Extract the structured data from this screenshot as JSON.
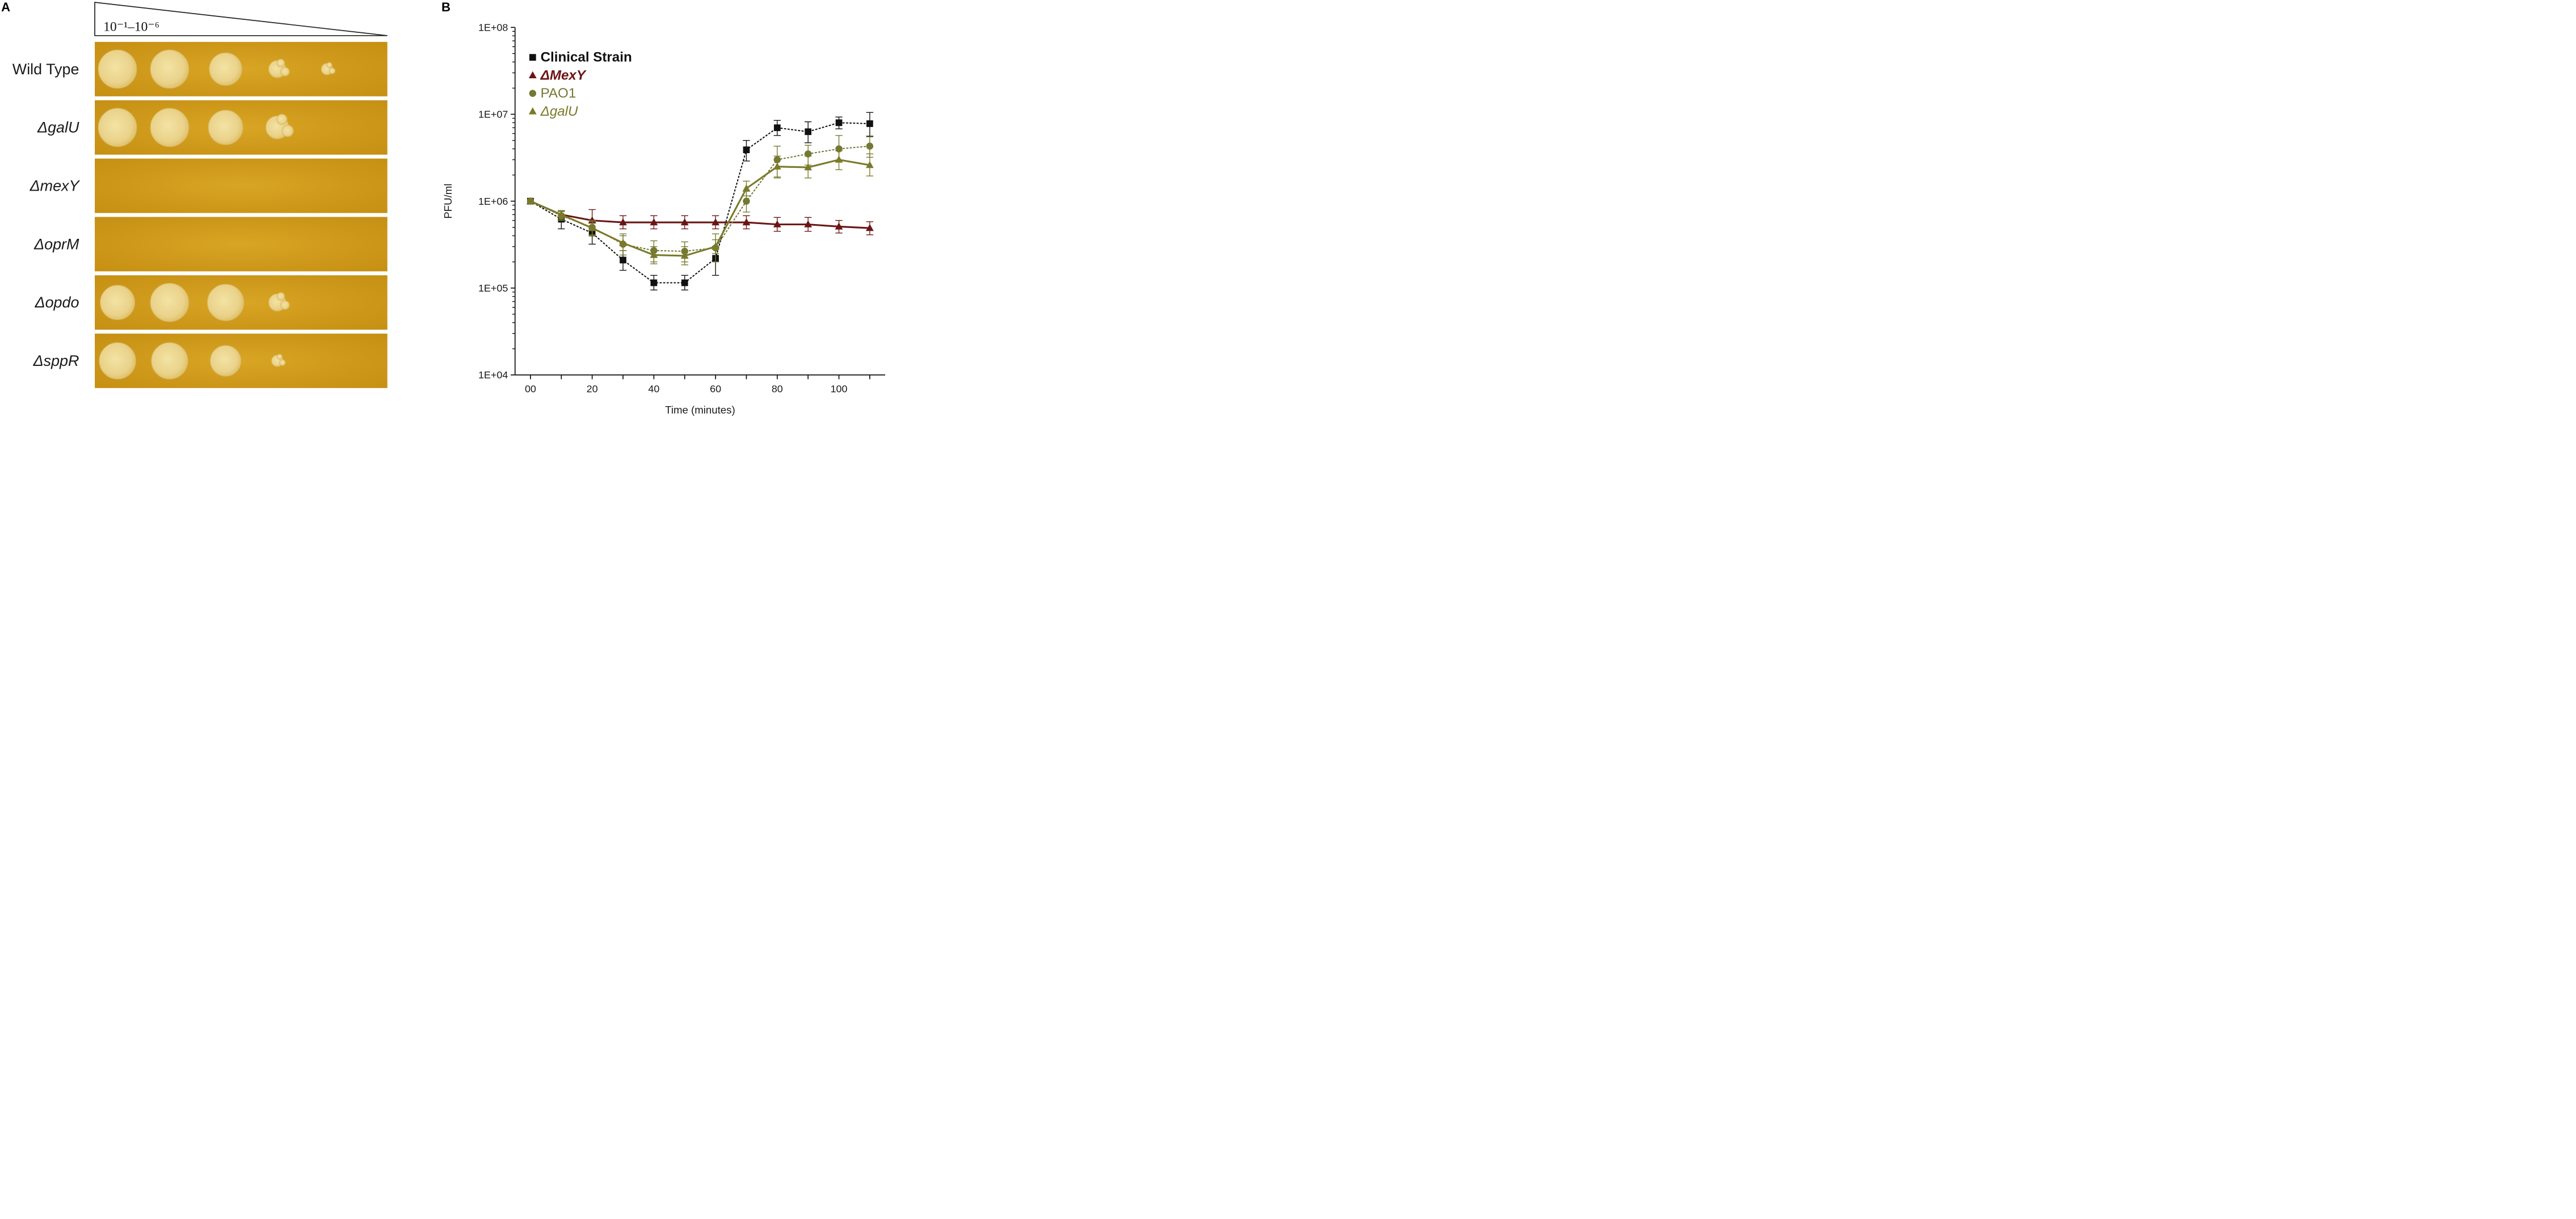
{
  "panel_a": {
    "label": "A",
    "dilution_label": "10⁻¹–10⁻⁶",
    "rows": [
      {
        "name": "Wild Type",
        "italic": false,
        "spots": [
          1.0,
          1.0,
          0.85,
          0.45,
          0.3,
          0
        ]
      },
      {
        "name": "ΔgalU",
        "italic": true,
        "spots": [
          1.0,
          1.0,
          0.9,
          0.6,
          0,
          0
        ]
      },
      {
        "name": "ΔmexY",
        "italic": true,
        "spots": [
          0,
          0,
          0,
          0,
          0,
          0
        ]
      },
      {
        "name": "ΔoprM",
        "italic": true,
        "spots": [
          0,
          0,
          0,
          0,
          0,
          0
        ]
      },
      {
        "name": "Δopdo",
        "italic": true,
        "spots": [
          0.9,
          1.0,
          0.95,
          0.45,
          0,
          0
        ]
      },
      {
        "name": "ΔsppR",
        "italic": true,
        "spots": [
          0.95,
          0.95,
          0.8,
          0.3,
          0,
          0
        ]
      }
    ]
  },
  "chart_data": {
    "label": "B",
    "type": "line",
    "xlabel": "Time (minutes)",
    "ylabel": "PFU/ml",
    "yscale": "log",
    "ylim": [
      10000,
      100000000
    ],
    "xlim": [
      -5,
      115
    ],
    "x_ticks": [
      0,
      20,
      40,
      60,
      80,
      100
    ],
    "x_tick_labels": [
      "00",
      "20",
      "40",
      "60",
      "80",
      "100"
    ],
    "y_ticks": [
      10000,
      100000,
      1000000,
      10000000,
      100000000
    ],
    "y_tick_labels": [
      "1E+04",
      "1E+05",
      "1E+06",
      "1E+07",
      "1E+08"
    ],
    "series": [
      {
        "name": "Clinical Strain",
        "color": "#111111",
        "marker": "square",
        "line": "dotted",
        "label_italic": false,
        "x": [
          0,
          10,
          20,
          30,
          40,
          50,
          60,
          70,
          80,
          90,
          100,
          110
        ],
        "values": [
          1000000,
          620000,
          430000,
          210000,
          115000,
          115000,
          220000,
          3900000,
          7000000,
          6300000,
          8000000,
          7800000
        ],
        "err_hi": [
          1000000,
          760000,
          560000,
          270000,
          140000,
          140000,
          300000,
          5000000,
          8500000,
          8200000,
          9300000,
          10500000
        ],
        "err_lo": [
          1000000,
          480000,
          320000,
          160000,
          95000,
          95000,
          140000,
          2900000,
          5700000,
          4700000,
          6800000,
          5600000
        ]
      },
      {
        "name": "ΔMexY",
        "color": "#6b1515",
        "marker": "triangle",
        "line": "solid",
        "label_italic": true,
        "x": [
          0,
          10,
          20,
          30,
          40,
          50,
          60,
          70,
          80,
          90,
          100,
          110
        ],
        "values": [
          1000000,
          700000,
          600000,
          570000,
          570000,
          570000,
          570000,
          570000,
          540000,
          540000,
          510000,
          490000
        ],
        "err_hi": [
          1000000,
          780000,
          800000,
          680000,
          680000,
          680000,
          680000,
          680000,
          650000,
          650000,
          600000,
          580000
        ],
        "err_lo": [
          1000000,
          620000,
          480000,
          480000,
          480000,
          480000,
          480000,
          480000,
          450000,
          450000,
          430000,
          410000
        ]
      },
      {
        "name": "PAO1",
        "color": "#757833",
        "marker": "circle",
        "line": "dotted",
        "label_italic": false,
        "x": [
          0,
          10,
          20,
          30,
          40,
          50,
          60,
          70,
          80,
          90,
          100,
          110
        ],
        "values": [
          1000000,
          680000,
          500000,
          320000,
          270000,
          265000,
          290000,
          1000000,
          3000000,
          3500000,
          4000000,
          4300000
        ],
        "err_hi": [
          1000000,
          760000,
          600000,
          420000,
          350000,
          340000,
          420000,
          1300000,
          4300000,
          4400000,
          5700000,
          5500000
        ],
        "err_lo": [
          1000000,
          600000,
          400000,
          240000,
          200000,
          200000,
          200000,
          750000,
          1900000,
          2600000,
          2900000,
          3200000
        ]
      },
      {
        "name": "ΔgalU",
        "color": "#7a7a2a",
        "marker": "triangle",
        "line": "solid",
        "label_italic": true,
        "x": [
          0,
          10,
          20,
          30,
          40,
          50,
          60,
          70,
          80,
          90,
          100,
          110
        ],
        "values": [
          1000000,
          700000,
          490000,
          330000,
          240000,
          235000,
          300000,
          1400000,
          2500000,
          2450000,
          3000000,
          2600000
        ],
        "err_hi": [
          1000000,
          780000,
          580000,
          400000,
          300000,
          300000,
          360000,
          1700000,
          3300000,
          3300000,
          3800000,
          3500000
        ],
        "err_lo": [
          1000000,
          620000,
          410000,
          270000,
          190000,
          185000,
          250000,
          1150000,
          1850000,
          1850000,
          2300000,
          1950000
        ]
      }
    ]
  }
}
